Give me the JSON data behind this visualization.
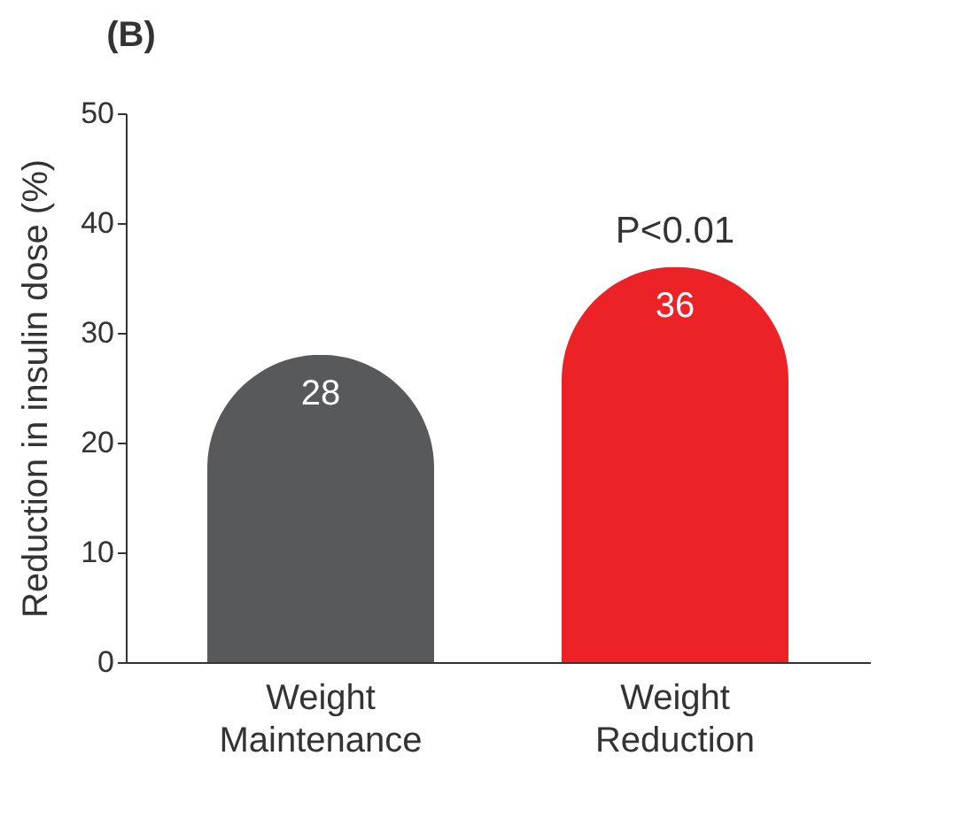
{
  "chart_data": {
    "type": "bar",
    "title": "(B)",
    "ylabel": "Reduction in insulin dose (%)",
    "categories": [
      "Weight Maintenance",
      "Weight Reduction"
    ],
    "values": [
      28,
      36
    ],
    "colors": [
      "#58595b",
      "#ed2227"
    ],
    "ylim": [
      0,
      50
    ],
    "yticks": [
      0,
      10,
      20,
      30,
      40,
      50
    ],
    "grid": false,
    "data_labels": true,
    "annotations": [
      "P<0.01"
    ]
  }
}
